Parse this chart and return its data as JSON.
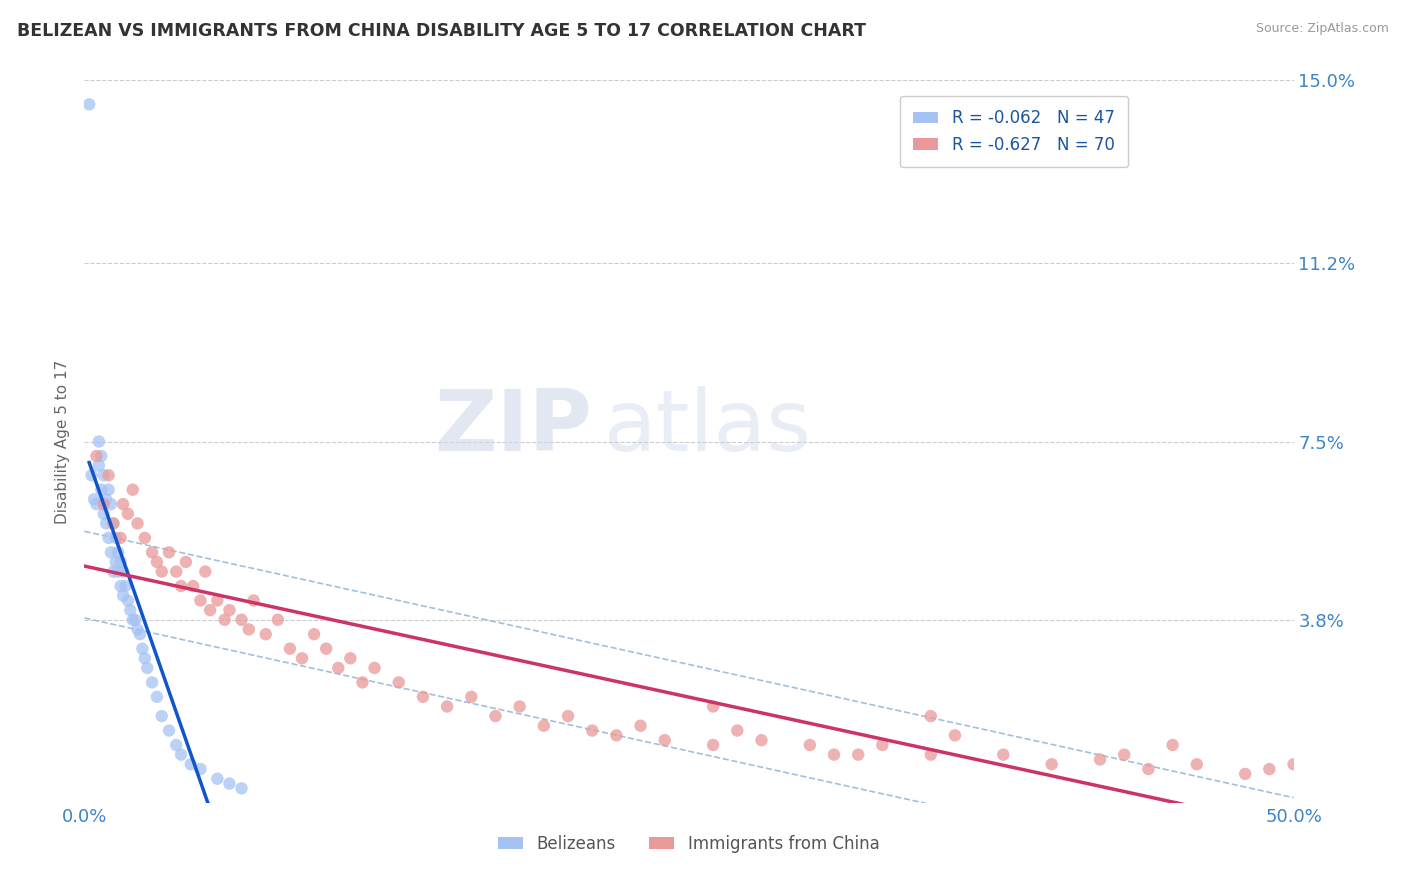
{
  "title": "BELIZEAN VS IMMIGRANTS FROM CHINA DISABILITY AGE 5 TO 17 CORRELATION CHART",
  "source": "Source: ZipAtlas.com",
  "ylabel": "Disability Age 5 to 17",
  "xmin": 0.0,
  "xmax": 0.5,
  "ymin": 0.0,
  "ymax": 0.15,
  "yticks": [
    0.0,
    0.038,
    0.075,
    0.112,
    0.15
  ],
  "ytick_labels": [
    "",
    "3.8%",
    "7.5%",
    "11.2%",
    "15.0%"
  ],
  "legend_entries": [
    {
      "label": "R = -0.062   N = 47",
      "color": "#a4c2f4"
    },
    {
      "label": "R = -0.627   N = 70",
      "color": "#ea9999"
    }
  ],
  "belizean_color": "#a4c2f4",
  "china_color": "#ea9999",
  "trendline_belizean_color": "#1155cc",
  "trendline_china_color": "#cc3366",
  "ci_color": "#a0c0e0",
  "background_color": "#ffffff",
  "grid_color": "#cccccc",
  "axis_color": "#3d85c8",
  "belizean_x": [
    0.002,
    0.003,
    0.004,
    0.005,
    0.006,
    0.006,
    0.007,
    0.007,
    0.008,
    0.008,
    0.009,
    0.009,
    0.01,
    0.01,
    0.011,
    0.011,
    0.012,
    0.012,
    0.013,
    0.013,
    0.014,
    0.014,
    0.015,
    0.015,
    0.016,
    0.016,
    0.017,
    0.018,
    0.019,
    0.02,
    0.021,
    0.022,
    0.023,
    0.024,
    0.025,
    0.026,
    0.028,
    0.03,
    0.032,
    0.035,
    0.038,
    0.04,
    0.044,
    0.048,
    0.055,
    0.06,
    0.065
  ],
  "belizean_y": [
    0.145,
    0.068,
    0.063,
    0.062,
    0.075,
    0.07,
    0.072,
    0.065,
    0.068,
    0.06,
    0.063,
    0.058,
    0.065,
    0.055,
    0.062,
    0.052,
    0.058,
    0.048,
    0.055,
    0.05,
    0.052,
    0.048,
    0.05,
    0.045,
    0.048,
    0.043,
    0.045,
    0.042,
    0.04,
    0.038,
    0.038,
    0.036,
    0.035,
    0.032,
    0.03,
    0.028,
    0.025,
    0.022,
    0.018,
    0.015,
    0.012,
    0.01,
    0.008,
    0.007,
    0.005,
    0.004,
    0.003
  ],
  "china_x": [
    0.005,
    0.008,
    0.01,
    0.012,
    0.015,
    0.016,
    0.018,
    0.02,
    0.022,
    0.025,
    0.028,
    0.03,
    0.032,
    0.035,
    0.038,
    0.04,
    0.042,
    0.045,
    0.048,
    0.05,
    0.052,
    0.055,
    0.058,
    0.06,
    0.065,
    0.068,
    0.07,
    0.075,
    0.08,
    0.085,
    0.09,
    0.095,
    0.1,
    0.105,
    0.11,
    0.115,
    0.12,
    0.13,
    0.14,
    0.15,
    0.16,
    0.17,
    0.18,
    0.19,
    0.2,
    0.21,
    0.22,
    0.23,
    0.24,
    0.26,
    0.27,
    0.28,
    0.3,
    0.31,
    0.33,
    0.35,
    0.36,
    0.38,
    0.4,
    0.42,
    0.44,
    0.45,
    0.46,
    0.48,
    0.49,
    0.5,
    0.35,
    0.26,
    0.32,
    0.43
  ],
  "china_y": [
    0.072,
    0.062,
    0.068,
    0.058,
    0.055,
    0.062,
    0.06,
    0.065,
    0.058,
    0.055,
    0.052,
    0.05,
    0.048,
    0.052,
    0.048,
    0.045,
    0.05,
    0.045,
    0.042,
    0.048,
    0.04,
    0.042,
    0.038,
    0.04,
    0.038,
    0.036,
    0.042,
    0.035,
    0.038,
    0.032,
    0.03,
    0.035,
    0.032,
    0.028,
    0.03,
    0.025,
    0.028,
    0.025,
    0.022,
    0.02,
    0.022,
    0.018,
    0.02,
    0.016,
    0.018,
    0.015,
    0.014,
    0.016,
    0.013,
    0.012,
    0.015,
    0.013,
    0.012,
    0.01,
    0.012,
    0.01,
    0.014,
    0.01,
    0.008,
    0.009,
    0.007,
    0.012,
    0.008,
    0.006,
    0.007,
    0.008,
    0.018,
    0.02,
    0.01,
    0.01
  ]
}
